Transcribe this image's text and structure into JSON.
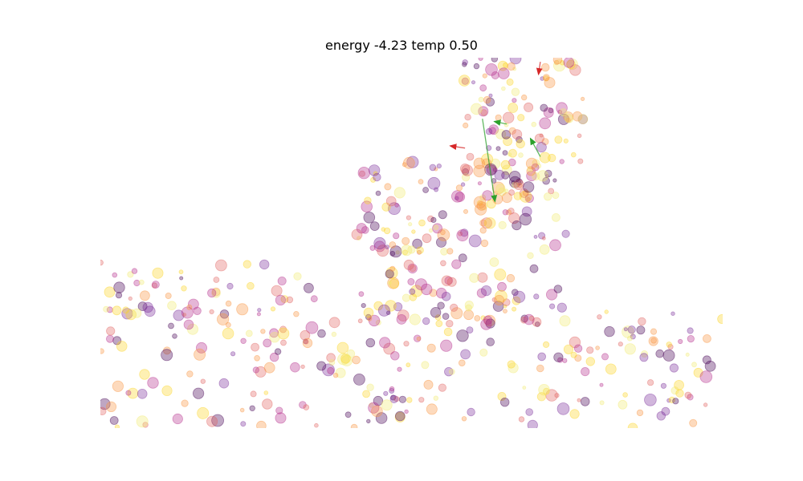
{
  "chart_data": {
    "type": "scatter",
    "title": "energy -4.23 temp 0.50",
    "xlabel": "",
    "ylabel": "",
    "xlim": [
      0,
      1
    ],
    "ylim": [
      0,
      1
    ],
    "axes_visible": false,
    "grid": false,
    "legend": "none",
    "point_count": 640,
    "point_alpha": 0.35,
    "palette": [
      "#440154",
      "#7b2f9a",
      "#b52f8c",
      "#e16462",
      "#f89441",
      "#fbd524",
      "#f2ec74"
    ],
    "density_regions": [
      {
        "x": [
          0.0,
          1.0
        ],
        "y": [
          0.0,
          0.32
        ],
        "weight": 0.38
      },
      {
        "x": [
          0.41,
          0.75
        ],
        "y": [
          0.28,
          0.72
        ],
        "weight": 0.32
      },
      {
        "x": [
          0.58,
          0.78
        ],
        "y": [
          0.62,
          1.0
        ],
        "weight": 0.22
      },
      {
        "x": [
          0.0,
          0.35
        ],
        "y": [
          0.3,
          0.45
        ],
        "weight": 0.08
      }
    ],
    "arrows": [
      {
        "from": [
          0.614,
          0.835
        ],
        "to": [
          0.634,
          0.612
        ],
        "color": "#2ca02c"
      },
      {
        "from": [
          0.653,
          0.821
        ],
        "to": [
          0.633,
          0.828
        ],
        "color": "#2ca02c"
      },
      {
        "from": [
          0.707,
          0.733
        ],
        "to": [
          0.691,
          0.782
        ],
        "color": "#2ca02c"
      },
      {
        "from": [
          0.586,
          0.756
        ],
        "to": [
          0.562,
          0.762
        ],
        "color": "#d62728"
      },
      {
        "from": [
          0.707,
          0.989
        ],
        "to": [
          0.704,
          0.955
        ],
        "color": "#d62728"
      }
    ]
  }
}
